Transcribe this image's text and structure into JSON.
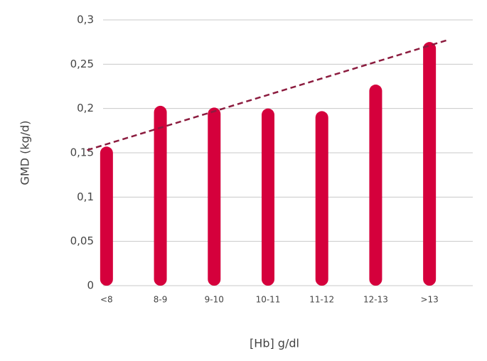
{
  "chart_data": {
    "type": "bar",
    "y_label": "GMD (kg/d)",
    "x_label": "[Hb] g/dl",
    "categories": [
      "<8",
      "8-9",
      "9-10",
      "10-11",
      "11-12",
      "12-13",
      ">13"
    ],
    "values": [
      0.157,
      0.203,
      0.201,
      0.2,
      0.197,
      0.227,
      0.275
    ],
    "color": "#d5003c",
    "ylim": [
      0,
      0.3
    ],
    "yticks": [
      0,
      {
        "value": 0.05,
        "label": "0,05"
      },
      {
        "value": 0.1,
        "label": "0,1"
      },
      {
        "value": 0.15,
        "label": "0,15"
      },
      {
        "value": 0.2,
        "label": "0,2"
      },
      {
        "value": 0.25,
        "label": "0,25"
      },
      {
        "value": 0.3,
        "label": "0,3"
      }
    ],
    "grid": true,
    "trendline": {
      "color": "#8c1c3f",
      "values": [
        0.153,
        0.277
      ]
    }
  }
}
